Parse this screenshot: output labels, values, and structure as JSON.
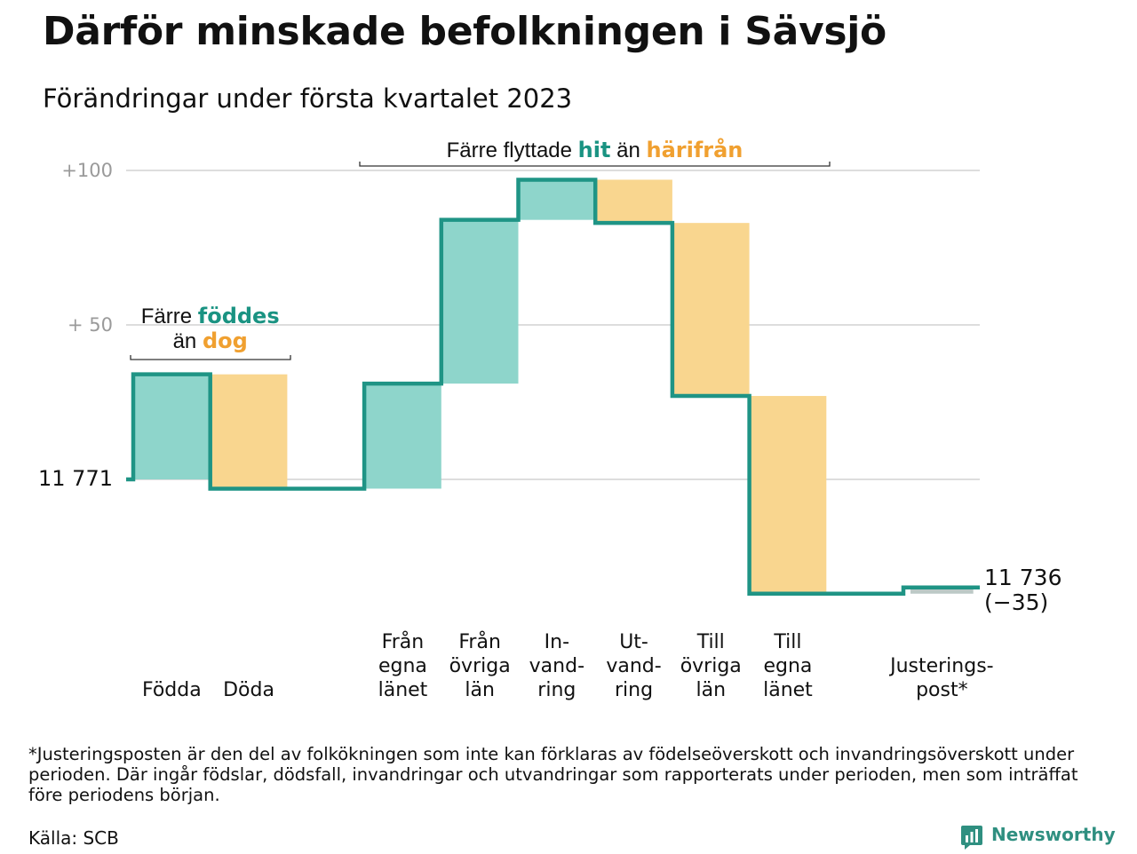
{
  "title": "Därför minskade befolkningen i Sävsjö",
  "subtitle": "Förändringar under första kvartalet 2023",
  "colors": {
    "increase": "#8ed5cb",
    "decrease": "#f9d68f",
    "line": "#1f9485",
    "adjust": "#bcc9c6",
    "grid": "#dddddd",
    "tick": "#9a9a9a",
    "teal_text": "#1a9382",
    "orange_text": "#f0a030"
  },
  "annotations": {
    "births": {
      "l1a": "Färre ",
      "l1b": "föddes",
      "l2a": "än ",
      "l2b": "dog"
    },
    "moves": {
      "a": "Färre flyttade ",
      "b": "hit",
      "c": " än ",
      "d": "härifrån"
    }
  },
  "chart_data": {
    "type": "waterfall",
    "start": {
      "label": "11 771",
      "value": 11771
    },
    "end": {
      "label": "11 736",
      "change_label": "(−35)",
      "value": 11736
    },
    "yticks": [
      {
        "value": 100,
        "label": "+100"
      },
      {
        "value": 50,
        "label": "+ 50"
      }
    ],
    "ylim": [
      -40,
      105
    ],
    "steps": [
      {
        "lines": [
          "Födda"
        ],
        "value": 34
      },
      {
        "lines": [
          "Döda"
        ],
        "value": -37
      },
      {
        "lines": [],
        "value": 0
      },
      {
        "lines": [
          "Från",
          "egna",
          "länet"
        ],
        "value": 34
      },
      {
        "lines": [
          "Från",
          "övriga",
          "län"
        ],
        "value": 53
      },
      {
        "lines": [
          "In-",
          "vand-",
          "ring"
        ],
        "value": 13
      },
      {
        "lines": [
          "Ut-",
          "vand-",
          "ring"
        ],
        "value": -14
      },
      {
        "lines": [
          "Till",
          "övriga",
          "län"
        ],
        "value": -56
      },
      {
        "lines": [
          "Till",
          "egna",
          "länet"
        ],
        "value": -64
      },
      {
        "lines": [],
        "value": 0
      },
      {
        "lines": [
          "Justerings-",
          "post*"
        ],
        "value": 2
      }
    ]
  },
  "footnote": "*Justeringsposten är den del av folkökningen som inte kan förklaras av födelseöverskott och invandringsöverskott under perioden. Där ingår födslar, dödsfall, invandringar och utvandringar som rapporterats under perioden, men som inträffat före periodens början.",
  "source": "Källa: SCB",
  "brand": "Newsworthy"
}
